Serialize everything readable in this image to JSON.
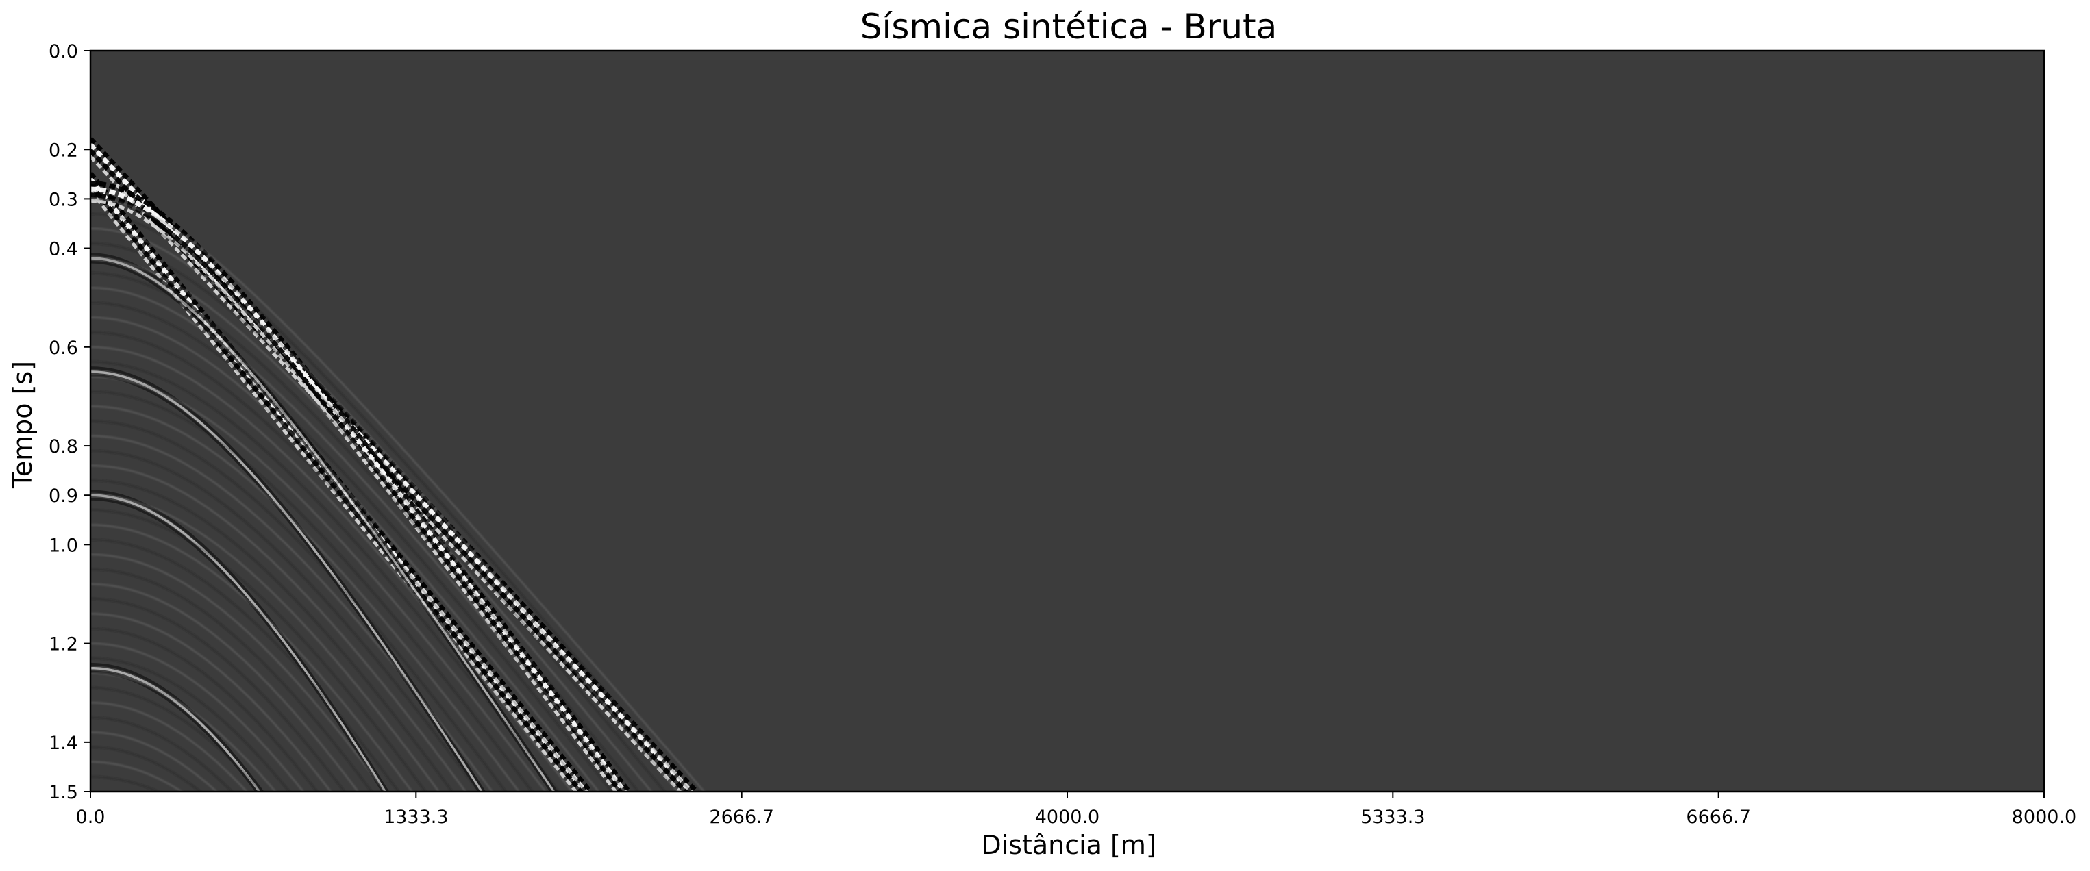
{
  "chart_data": {
    "type": "heatmap",
    "title": "Sísmica sintética - Bruta",
    "xlabel": "Distância [m]",
    "ylabel": "Tempo [s]",
    "xlim": [
      0,
      8000
    ],
    "ylim": [
      0,
      1.5
    ],
    "x_tick_labels": [
      "0.0",
      "1333.3",
      "2666.7",
      "4000.0",
      "5333.3",
      "6666.7",
      "8000.0"
    ],
    "x_tick_values": [
      0,
      1333.3,
      2666.7,
      4000,
      5333.3,
      6666.7,
      8000
    ],
    "y_tick_labels": [
      "0.0",
      "0.2",
      "0.3",
      "0.4",
      "0.6",
      "0.8",
      "0.9",
      "1.0",
      "1.2",
      "1.4",
      "1.5"
    ],
    "colormap": "gray",
    "background_value_color": "#3c3c3c",
    "grid": false,
    "events": [
      {
        "kind": "direct-wave",
        "intercept_time": 0.19,
        "time_at_2600m": 1.5
      },
      {
        "kind": "refracted-wave",
        "intercept_time": 0.26,
        "time_at_2150m": 1.5
      },
      {
        "kind": "reflection",
        "zero_offset_time": 0.28,
        "time_at_2300m": 1.5
      },
      {
        "kind": "reflection",
        "zero_offset_time": 0.42,
        "time_at_2000m": 1.5
      },
      {
        "kind": "reflection",
        "zero_offset_time": 0.65,
        "time_at_1700m": 1.5
      },
      {
        "kind": "reflection",
        "zero_offset_time": 0.9,
        "time_at_1300m": 1.5
      },
      {
        "kind": "reflection",
        "zero_offset_time": 1.25,
        "time_at_800m": 1.5
      }
    ]
  }
}
